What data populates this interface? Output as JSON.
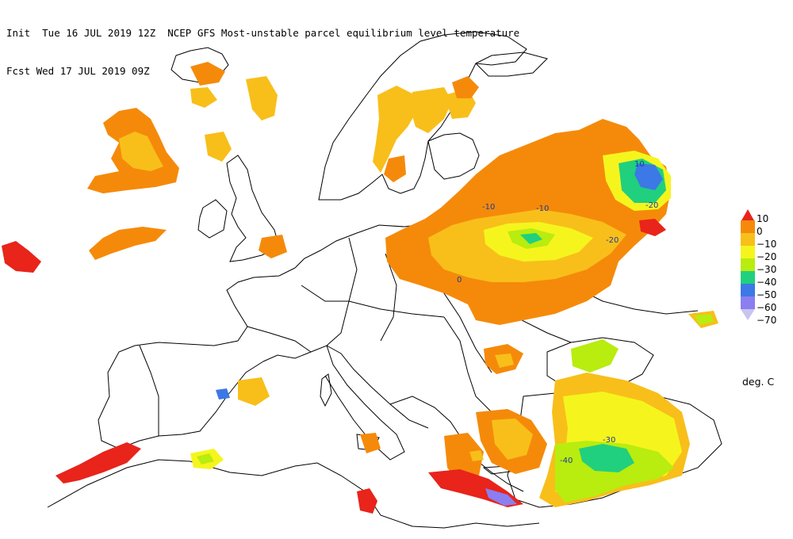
{
  "header": {
    "line1": "Init  Tue 16 JUL 2019 12Z  NCEP GFS Most-unstable parcel equilibrium level temperature",
    "line2": "Fcst Wed 17 JUL 2019 09Z"
  },
  "legend": {
    "levels": [
      "10",
      "0",
      "−10",
      "−20",
      "−30",
      "−40",
      "−50",
      "−60",
      "−70"
    ],
    "colors": [
      "#e8241b",
      "#f58a0a",
      "#f8bf1a",
      "#f5f51d",
      "#b9ec0f",
      "#20d07e",
      "#3c78e6",
      "#8a7ef0",
      "#c9c3f2"
    ],
    "units": "deg. C"
  },
  "contour_labels": [
    "10",
    "-10",
    "-10",
    "-20",
    "-20",
    "0",
    "-30",
    "-40"
  ],
  "colors": {
    "coast": "#000000",
    "land": "#ffffff"
  }
}
